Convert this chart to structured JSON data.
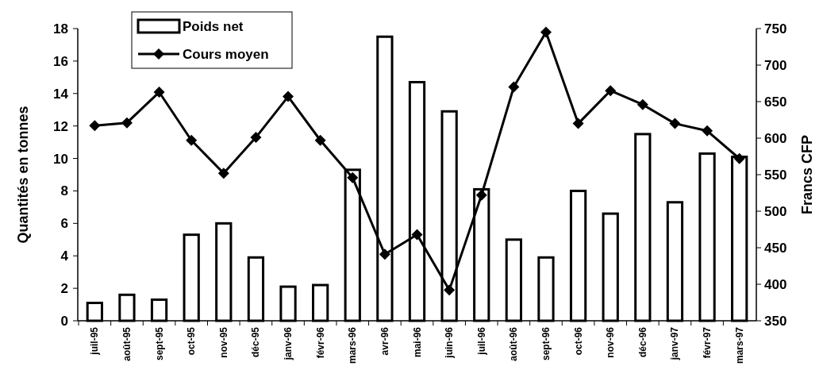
{
  "chart_data": {
    "type": "bar",
    "categories": [
      "juil-95",
      "août-95",
      "sept-95",
      "oct-95",
      "nov-95",
      "déc-95",
      "janv-96",
      "févr-96",
      "mars-96",
      "avr-96",
      "mai-96",
      "juin-96",
      "juil-96",
      "août-96",
      "sept-96",
      "oct-96",
      "nov-96",
      "déc-96",
      "janv-97",
      "févr-97",
      "mars-97"
    ],
    "series": [
      {
        "name": "Poids net",
        "color": "#ffffff",
        "values": [
          1.1,
          1.6,
          1.3,
          5.3,
          6.0,
          3.9,
          2.1,
          2.2,
          9.3,
          17.5,
          14.7,
          12.9,
          8.1,
          5.0,
          3.9,
          8.0,
          6.6,
          11.5,
          7.3,
          10.3,
          10.1
        ]
      },
      {
        "name": "Cours moyen",
        "type": "line",
        "axis": "y2",
        "color": "#000000",
        "values": [
          617,
          621,
          663,
          597,
          552,
          601,
          657,
          597,
          546,
          441,
          468,
          392,
          522,
          670,
          745,
          620,
          665,
          646,
          620,
          610,
          572
        ]
      }
    ],
    "ylabel": "Quantités en tonnes",
    "y2label": "Francs CFP",
    "ylim": [
      0,
      18
    ],
    "yticks": [
      0,
      2,
      4,
      6,
      8,
      10,
      12,
      14,
      16,
      18
    ],
    "y2lim": [
      350,
      750
    ],
    "y2ticks": [
      350,
      400,
      450,
      500,
      550,
      600,
      650,
      700,
      750
    ],
    "legend": "top left",
    "marker": "diamond",
    "grid": false
  }
}
